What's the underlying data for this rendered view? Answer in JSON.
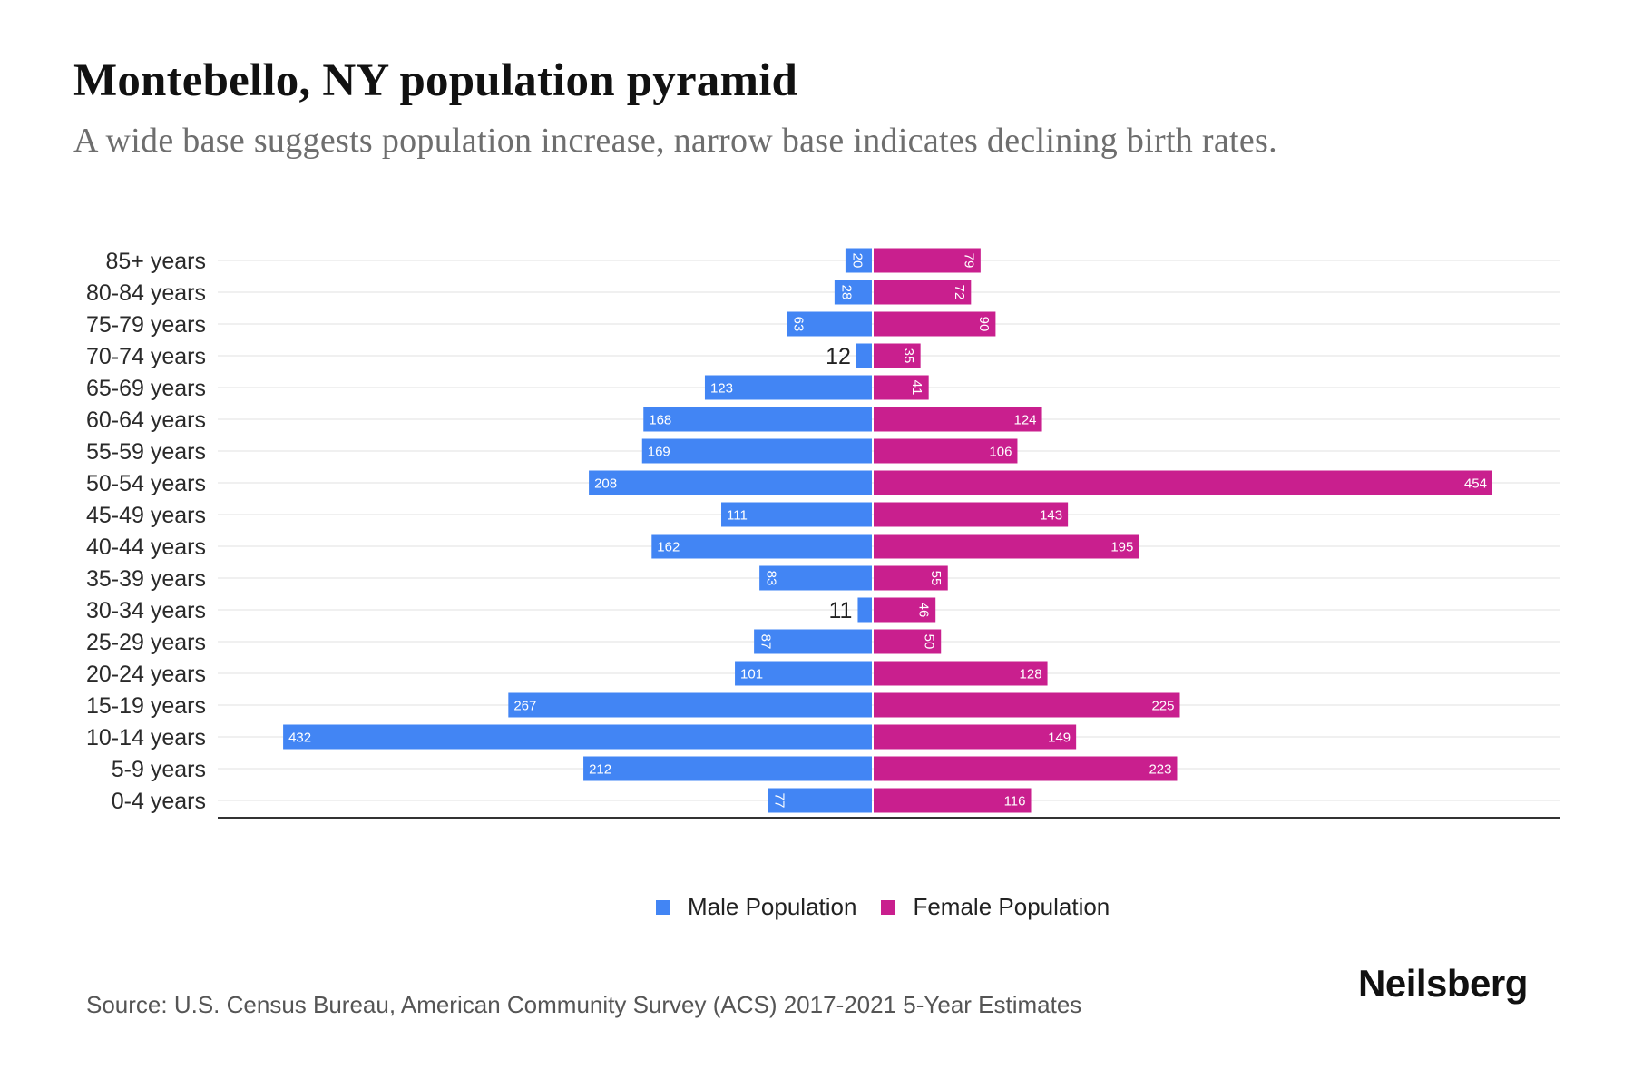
{
  "header": {
    "title": "Montebello, NY population pyramid",
    "subtitle": "A wide base suggests population increase, narrow base indicates declining birth rates."
  },
  "footer": {
    "source": "Source: U.S. Census Bureau, American Community Survey (ACS) 2017-2021 5-Year Estimates",
    "logo": "Neilsberg"
  },
  "chart_data": {
    "type": "bar",
    "orientation": "horizontal",
    "subtype": "population-pyramid",
    "title": "Montebello, NY population pyramid",
    "subtitle": "A wide base suggests population increase, narrow base indicates declining birth rates.",
    "xlabel": "",
    "ylabel": "",
    "categories": [
      "85+ years",
      "80-84 years",
      "75-79 years",
      "70-74 years",
      "65-69 years",
      "60-64 years",
      "55-59 years",
      "50-54 years",
      "45-49 years",
      "40-44 years",
      "35-39 years",
      "30-34 years",
      "25-29 years",
      "20-24 years",
      "15-19 years",
      "10-14 years",
      "5-9 years",
      "0-4 years"
    ],
    "series": [
      {
        "name": "Male Population",
        "color": "#4285F4",
        "side": "left",
        "values": [
          20,
          28,
          63,
          12,
          123,
          168,
          169,
          208,
          111,
          162,
          83,
          11,
          87,
          101,
          267,
          432,
          212,
          77
        ]
      },
      {
        "name": "Female Population",
        "color": "#C91F8E",
        "side": "right",
        "values": [
          79,
          72,
          90,
          35,
          41,
          124,
          106,
          454,
          143,
          195,
          55,
          46,
          50,
          128,
          225,
          149,
          223,
          116
        ]
      }
    ],
    "xlim": [
      -454,
      454
    ],
    "grid": true,
    "data_labels": true,
    "legend": {
      "position": "bottom-center",
      "entries": [
        "Male Population",
        "Female Population"
      ]
    }
  }
}
